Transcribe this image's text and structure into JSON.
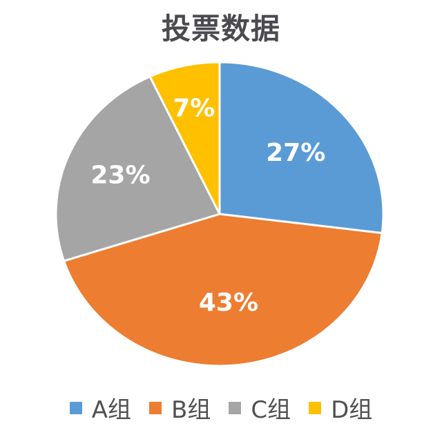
{
  "chart_data": {
    "type": "pie",
    "title": "投票数据",
    "categories": [
      "A组",
      "B组",
      "C组",
      "D组"
    ],
    "values": [
      27,
      43,
      23,
      7
    ],
    "labels": [
      "27%",
      "43%",
      "23%",
      "7%"
    ],
    "colors": [
      "#5B9BD5",
      "#ED7D31",
      "#A5A5A5",
      "#FFC000"
    ],
    "legend_position": "bottom",
    "start_angle": "12 o'clock, clockwise"
  },
  "title": "投票数据",
  "legend": [
    {
      "label": "A组",
      "color": "#5B9BD5"
    },
    {
      "label": "B组",
      "color": "#ED7D31"
    },
    {
      "label": "C组",
      "color": "#A5A5A5"
    },
    {
      "label": "D组",
      "color": "#FFC000"
    }
  ]
}
